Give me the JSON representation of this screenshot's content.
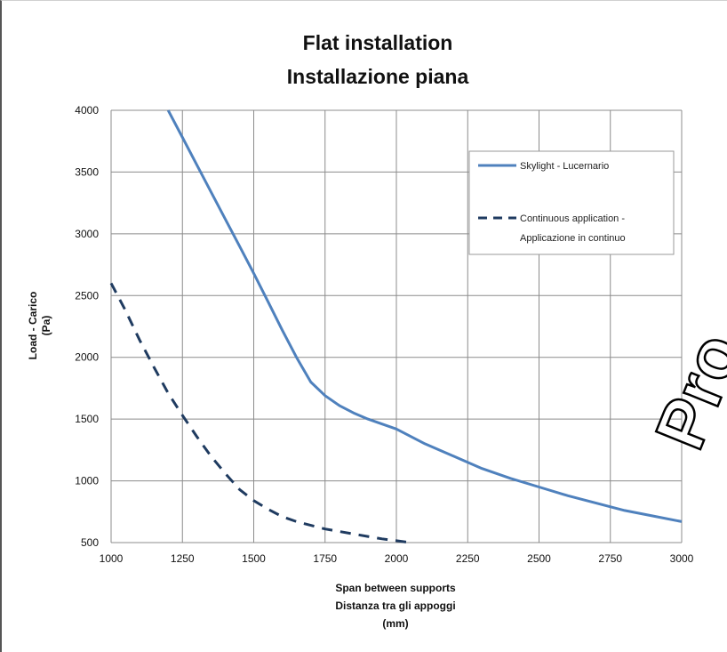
{
  "chart_data": {
    "type": "line",
    "title": [
      "Flat installation",
      "Installazione piana"
    ],
    "xlabel": [
      "Span between supports",
      "Distanza tra gli appoggi",
      "(mm)"
    ],
    "ylabel": [
      "Load - Carico",
      "(Pa)"
    ],
    "xlim": [
      1000,
      3000
    ],
    "ylim": [
      500,
      4000
    ],
    "xticks": [
      "1000",
      "1250",
      "1500",
      "1750",
      "2000",
      "2250",
      "2500",
      "2750",
      "3000"
    ],
    "yticks": [
      "500",
      "1000",
      "1500",
      "2000",
      "2500",
      "3000",
      "3500",
      "4000"
    ],
    "grid": true,
    "legend_position": "top-right",
    "series": [
      {
        "name": "Skylight - Lucernario",
        "style": "solid",
        "color": "#4f81bd",
        "x": [
          1200,
          1250,
          1300,
          1350,
          1400,
          1450,
          1500,
          1550,
          1600,
          1650,
          1700,
          1750,
          1800,
          1850,
          1900,
          1950,
          2000,
          2100,
          2200,
          2300,
          2400,
          2500,
          2600,
          2700,
          2800,
          2900,
          3000
        ],
        "y": [
          4000,
          3780,
          3560,
          3340,
          3120,
          2900,
          2680,
          2450,
          2220,
          2000,
          1800,
          1690,
          1610,
          1550,
          1500,
          1460,
          1420,
          1300,
          1200,
          1100,
          1020,
          950,
          880,
          820,
          760,
          715,
          670
        ]
      },
      {
        "name": [
          "Continuous application -",
          "Applicazione in continuo"
        ],
        "style": "dashed",
        "color": "#1f3b60",
        "x": [
          1000,
          1050,
          1100,
          1150,
          1200,
          1250,
          1300,
          1350,
          1400,
          1450,
          1500,
          1550,
          1600,
          1650,
          1700,
          1750,
          1800,
          1850,
          1900,
          1950,
          2000,
          2050
        ],
        "y": [
          2600,
          2380,
          2140,
          1920,
          1710,
          1530,
          1360,
          1200,
          1060,
          930,
          840,
          770,
          710,
          670,
          640,
          610,
          590,
          570,
          550,
          530,
          515,
          500
        ]
      }
    ]
  },
  "watermark": {
    "text": "Pro"
  }
}
